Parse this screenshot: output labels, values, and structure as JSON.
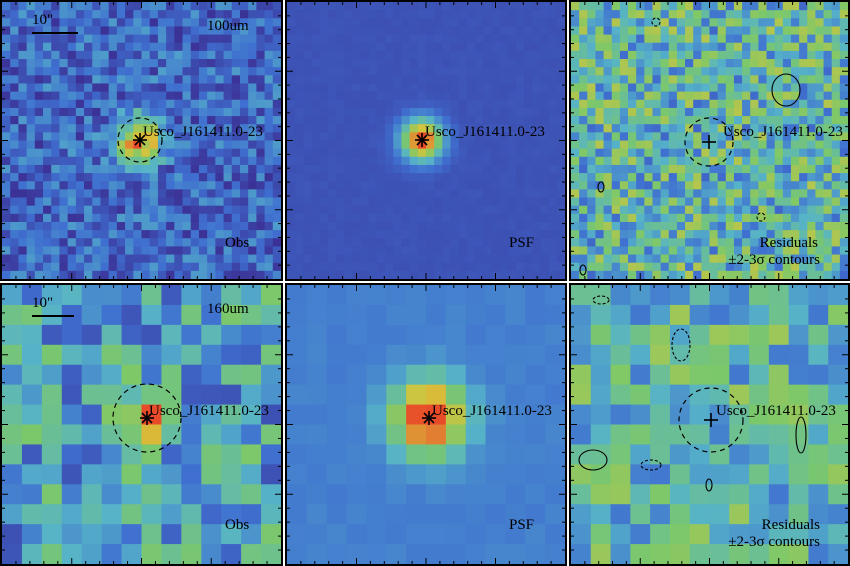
{
  "palette": {
    "low": "#3b2a8f",
    "mid_low": "#3f6fd0",
    "mid": "#56b3c8",
    "mid_high": "#7cc86a",
    "high": "#d9c43a",
    "peak": "#e84b2a",
    "center": "#d42a1f",
    "border": "#000000"
  },
  "rows": [
    {
      "band": "100um",
      "scalebar": "10\"",
      "source_name": "Usco_J161411.0-23",
      "panels": [
        {
          "kind": "obs",
          "caption": "Obs"
        },
        {
          "kind": "psf",
          "caption": "PSF"
        },
        {
          "kind": "residuals",
          "caption_line1": "Residuals",
          "caption_line2": "±2-3σ contours"
        }
      ]
    },
    {
      "band": "160um",
      "scalebar": "10\"",
      "source_name": "Usco_J161411.0-23",
      "panels": [
        {
          "kind": "obs",
          "caption": "Obs"
        },
        {
          "kind": "psf",
          "caption": "PSF"
        },
        {
          "kind": "residuals",
          "caption_line1": "Residuals",
          "caption_line2": "±2-3σ contours"
        }
      ]
    }
  ]
}
